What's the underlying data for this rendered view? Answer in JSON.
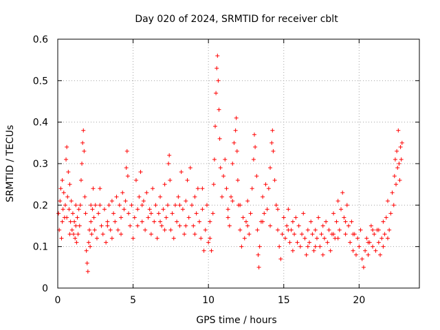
{
  "chart_data": {
    "type": "scatter",
    "title": "Day 020 of 2024, SRMTID for receiver cblt",
    "xlabel": "GPS time / hours",
    "ylabel": "SRMTID / TECUs",
    "xlim": [
      0,
      24
    ],
    "ylim": [
      0,
      0.6
    ],
    "xticks": [
      0,
      5,
      10,
      15,
      20
    ],
    "xtick_labels": [
      "0",
      "5",
      "10",
      "15",
      "20"
    ],
    "yticks": [
      0,
      0.1,
      0.2,
      0.3,
      0.4,
      0.5,
      0.6
    ],
    "ytick_labels": [
      "0",
      "0.1",
      "0.2",
      "0.3",
      "0.4",
      "0.5",
      "0.6"
    ],
    "grid": true,
    "marker": "plus",
    "marker_color": "#ff0000",
    "series": [
      {
        "name": "SRMTID",
        "points": [
          [
            0.05,
            0.18
          ],
          [
            0.1,
            0.14
          ],
          [
            0.15,
            0.21
          ],
          [
            0.2,
            0.24
          ],
          [
            0.25,
            0.12
          ],
          [
            0.3,
            0.26
          ],
          [
            0.35,
            0.19
          ],
          [
            0.4,
            0.23
          ],
          [
            0.45,
            0.17
          ],
          [
            0.5,
            0.2
          ],
          [
            0.55,
            0.31
          ],
          [
            0.6,
            0.34
          ],
          [
            0.65,
            0.22
          ],
          [
            0.7,
            0.28
          ],
          [
            0.75,
            0.19
          ],
          [
            0.8,
            0.25
          ],
          [
            0.85,
            0.16
          ],
          [
            0.9,
            0.21
          ],
          [
            0.95,
            0.14
          ],
          [
            1.0,
            0.18
          ],
          [
            1.05,
            0.13
          ],
          [
            1.1,
            0.16
          ],
          [
            1.15,
            0.12
          ],
          [
            1.2,
            0.15
          ],
          [
            1.25,
            0.11
          ],
          [
            1.3,
            0.17
          ],
          [
            1.35,
            0.13
          ],
          [
            1.4,
            0.19
          ],
          [
            1.45,
            0.15
          ],
          [
            1.5,
            0.2
          ],
          [
            1.55,
            0.26
          ],
          [
            1.6,
            0.3
          ],
          [
            1.65,
            0.35
          ],
          [
            1.7,
            0.38
          ],
          [
            1.75,
            0.33
          ],
          [
            1.8,
            0.22
          ],
          [
            1.85,
            0.18
          ],
          [
            1.9,
            0.09
          ],
          [
            1.95,
            0.06
          ],
          [
            2.0,
            0.04
          ],
          [
            2.05,
            0.11
          ],
          [
            2.1,
            0.14
          ],
          [
            2.15,
            0.1
          ],
          [
            2.2,
            0.16
          ],
          [
            2.25,
            0.13
          ],
          [
            2.3,
            0.19
          ],
          [
            2.35,
            0.24
          ],
          [
            2.4,
            0.17
          ],
          [
            2.45,
            0.14
          ],
          [
            2.5,
            0.2
          ],
          [
            2.6,
            0.12
          ],
          [
            2.7,
            0.18
          ],
          [
            2.8,
            0.24
          ],
          [
            2.9,
            0.15
          ],
          [
            3.0,
            0.13
          ],
          [
            3.1,
            0.19
          ],
          [
            3.2,
            0.11
          ],
          [
            3.3,
            0.16
          ],
          [
            3.4,
            0.2
          ],
          [
            3.5,
            0.14
          ],
          [
            3.6,
            0.12
          ],
          [
            3.7,
            0.18
          ],
          [
            3.8,
            0.16
          ],
          [
            3.9,
            0.22
          ],
          [
            4.0,
            0.14
          ],
          [
            4.1,
            0.2
          ],
          [
            4.2,
            0.17
          ],
          [
            4.3,
            0.23
          ],
          [
            4.4,
            0.19
          ],
          [
            4.5,
            0.21
          ],
          [
            4.55,
            0.29
          ],
          [
            4.6,
            0.33
          ],
          [
            4.65,
            0.27
          ],
          [
            4.7,
            0.18
          ],
          [
            4.8,
            0.15
          ],
          [
            4.9,
            0.2
          ],
          [
            5.0,
            0.12
          ],
          [
            5.1,
            0.17
          ],
          [
            5.2,
            0.26
          ],
          [
            5.3,
            0.19
          ],
          [
            5.4,
            0.22
          ],
          [
            5.5,
            0.28
          ],
          [
            5.6,
            0.16
          ],
          [
            5.7,
            0.21
          ],
          [
            5.8,
            0.14
          ],
          [
            5.9,
            0.23
          ],
          [
            6.0,
            0.17
          ],
          [
            6.1,
            0.19
          ],
          [
            6.2,
            0.13
          ],
          [
            6.3,
            0.24
          ],
          [
            6.4,
            0.16
          ],
          [
            6.5,
            0.2
          ],
          [
            6.6,
            0.12
          ],
          [
            6.7,
            0.18
          ],
          [
            6.8,
            0.22
          ],
          [
            6.9,
            0.15
          ],
          [
            7.0,
            0.19
          ],
          [
            7.1,
            0.25
          ],
          [
            7.2,
            0.17
          ],
          [
            7.3,
            0.2
          ],
          [
            7.35,
            0.3
          ],
          [
            7.4,
            0.32
          ],
          [
            7.45,
            0.26
          ],
          [
            7.5,
            0.14
          ],
          [
            7.6,
            0.18
          ],
          [
            7.7,
            0.12
          ],
          [
            7.8,
            0.2
          ],
          [
            7.9,
            0.16
          ],
          [
            8.0,
            0.22
          ],
          [
            8.1,
            0.15
          ],
          [
            8.2,
            0.28
          ],
          [
            8.3,
            0.19
          ],
          [
            8.4,
            0.13
          ],
          [
            8.5,
            0.21
          ],
          [
            8.6,
            0.26
          ],
          [
            8.7,
            0.17
          ],
          [
            8.8,
            0.29
          ],
          [
            8.9,
            0.2
          ],
          [
            9.0,
            0.15
          ],
          [
            9.1,
            0.22
          ],
          [
            9.2,
            0.18
          ],
          [
            9.3,
            0.24
          ],
          [
            9.4,
            0.16
          ],
          [
            9.5,
            0.12
          ],
          [
            9.6,
            0.19
          ],
          [
            9.7,
            0.09
          ],
          [
            9.8,
            0.14
          ],
          [
            9.9,
            0.2
          ],
          [
            10.0,
            0.11
          ],
          [
            10.1,
            0.16
          ],
          [
            10.2,
            0.09
          ],
          [
            10.3,
            0.18
          ],
          [
            10.35,
            0.25
          ],
          [
            10.4,
            0.31
          ],
          [
            10.45,
            0.39
          ],
          [
            10.5,
            0.47
          ],
          [
            10.55,
            0.53
          ],
          [
            10.6,
            0.56
          ],
          [
            10.65,
            0.5
          ],
          [
            10.7,
            0.43
          ],
          [
            10.75,
            0.36
          ],
          [
            10.8,
            0.29
          ],
          [
            10.9,
            0.22
          ],
          [
            11.0,
            0.27
          ],
          [
            11.1,
            0.31
          ],
          [
            11.2,
            0.24
          ],
          [
            11.3,
            0.19
          ],
          [
            11.4,
            0.15
          ],
          [
            11.5,
            0.22
          ],
          [
            11.6,
            0.3
          ],
          [
            11.7,
            0.35
          ],
          [
            11.8,
            0.38
          ],
          [
            11.85,
            0.41
          ],
          [
            11.9,
            0.33
          ],
          [
            11.95,
            0.26
          ],
          [
            12.0,
            0.2
          ],
          [
            12.1,
            0.14
          ],
          [
            12.2,
            0.1
          ],
          [
            12.3,
            0.17
          ],
          [
            12.4,
            0.12
          ],
          [
            12.5,
            0.16
          ],
          [
            12.6,
            0.21
          ],
          [
            12.7,
            0.13
          ],
          [
            12.8,
            0.18
          ],
          [
            12.9,
            0.24
          ],
          [
            13.0,
            0.31
          ],
          [
            13.05,
            0.37
          ],
          [
            13.1,
            0.34
          ],
          [
            13.2,
            0.27
          ],
          [
            13.25,
            0.14
          ],
          [
            13.3,
            0.08
          ],
          [
            13.35,
            0.05
          ],
          [
            13.4,
            0.1
          ],
          [
            13.5,
            0.16
          ],
          [
            13.6,
            0.22
          ],
          [
            13.7,
            0.18
          ],
          [
            13.8,
            0.25
          ],
          [
            13.9,
            0.19
          ],
          [
            14.0,
            0.24
          ],
          [
            14.1,
            0.29
          ],
          [
            14.2,
            0.35
          ],
          [
            14.25,
            0.38
          ],
          [
            14.3,
            0.33
          ],
          [
            14.4,
            0.26
          ],
          [
            14.5,
            0.2
          ],
          [
            14.6,
            0.14
          ],
          [
            14.7,
            0.1
          ],
          [
            14.8,
            0.07
          ],
          [
            14.9,
            0.13
          ],
          [
            15.0,
            0.17
          ],
          [
            15.1,
            0.12
          ],
          [
            15.2,
            0.15
          ],
          [
            15.3,
            0.19
          ],
          [
            15.4,
            0.11
          ],
          [
            15.5,
            0.14
          ],
          [
            15.6,
            0.09
          ],
          [
            15.7,
            0.13
          ],
          [
            15.8,
            0.17
          ],
          [
            15.9,
            0.11
          ],
          [
            16.0,
            0.15
          ],
          [
            16.1,
            0.1
          ],
          [
            16.2,
            0.13
          ],
          [
            16.3,
            0.18
          ],
          [
            16.4,
            0.12
          ],
          [
            16.5,
            0.08
          ],
          [
            16.6,
            0.14
          ],
          [
            16.7,
            0.11
          ],
          [
            16.8,
            0.16
          ],
          [
            16.9,
            0.13
          ],
          [
            17.0,
            0.09
          ],
          [
            17.1,
            0.14
          ],
          [
            17.2,
            0.12
          ],
          [
            17.3,
            0.17
          ],
          [
            17.4,
            0.1
          ],
          [
            17.5,
            0.13
          ],
          [
            17.6,
            0.08
          ],
          [
            17.7,
            0.12
          ],
          [
            17.8,
            0.16
          ],
          [
            17.9,
            0.11
          ],
          [
            18.0,
            0.14
          ],
          [
            18.1,
            0.09
          ],
          [
            18.2,
            0.13
          ],
          [
            18.3,
            0.18
          ],
          [
            18.4,
            0.12
          ],
          [
            18.5,
            0.16
          ],
          [
            18.6,
            0.21
          ],
          [
            18.7,
            0.14
          ],
          [
            18.8,
            0.19
          ],
          [
            18.9,
            0.23
          ],
          [
            19.0,
            0.17
          ],
          [
            19.1,
            0.13
          ],
          [
            19.2,
            0.2
          ],
          [
            19.3,
            0.15
          ],
          [
            19.4,
            0.11
          ],
          [
            19.5,
            0.16
          ],
          [
            19.6,
            0.09
          ],
          [
            19.7,
            0.13
          ],
          [
            19.8,
            0.08
          ],
          [
            19.9,
            0.12
          ],
          [
            20.0,
            0.1
          ],
          [
            20.1,
            0.14
          ],
          [
            20.2,
            0.07
          ],
          [
            20.3,
            0.05
          ],
          [
            20.4,
            0.09
          ],
          [
            20.5,
            0.12
          ],
          [
            20.6,
            0.08
          ],
          [
            20.7,
            0.11
          ],
          [
            20.8,
            0.15
          ],
          [
            20.9,
            0.1
          ],
          [
            21.0,
            0.13
          ],
          [
            21.1,
            0.09
          ],
          [
            21.2,
            0.14
          ],
          [
            21.3,
            0.11
          ],
          [
            21.4,
            0.08
          ],
          [
            21.5,
            0.12
          ],
          [
            21.6,
            0.16
          ],
          [
            21.7,
            0.13
          ],
          [
            21.8,
            0.17
          ],
          [
            21.9,
            0.21
          ],
          [
            22.0,
            0.14
          ],
          [
            22.1,
            0.18
          ],
          [
            22.2,
            0.23
          ],
          [
            22.3,
            0.2
          ],
          [
            22.35,
            0.27
          ],
          [
            22.4,
            0.31
          ],
          [
            22.45,
            0.25
          ],
          [
            22.5,
            0.33
          ],
          [
            22.55,
            0.29
          ],
          [
            22.6,
            0.38
          ],
          [
            22.65,
            0.3
          ],
          [
            22.7,
            0.26
          ],
          [
            22.75,
            0.34
          ],
          [
            22.8,
            0.31
          ],
          [
            22.85,
            0.35
          ],
          [
            0.3,
            0.16
          ],
          [
            0.8,
            0.13
          ],
          [
            1.2,
            0.2
          ],
          [
            2.2,
            0.2
          ],
          [
            3.3,
            0.15
          ],
          [
            4.2,
            0.13
          ],
          [
            5.3,
            0.15
          ],
          [
            6.2,
            0.18
          ],
          [
            7.1,
            0.14
          ],
          [
            8.1,
            0.2
          ],
          [
            9.1,
            0.13
          ],
          [
            10.1,
            0.12
          ],
          [
            11.3,
            0.17
          ],
          [
            12.6,
            0.15
          ],
          [
            13.6,
            0.16
          ],
          [
            14.6,
            0.19
          ],
          [
            15.6,
            0.16
          ],
          [
            16.6,
            0.1
          ],
          [
            17.6,
            0.15
          ],
          [
            18.6,
            0.12
          ],
          [
            19.6,
            0.13
          ],
          [
            20.6,
            0.11
          ],
          [
            21.6,
            0.1
          ],
          [
            0.6,
            0.17
          ],
          [
            2.8,
            0.2
          ],
          [
            5.6,
            0.2
          ],
          [
            8.5,
            0.15
          ],
          [
            12.1,
            0.2
          ],
          [
            14.1,
            0.15
          ],
          [
            17.1,
            0.1
          ],
          [
            19.1,
            0.16
          ],
          [
            20.9,
            0.14
          ],
          [
            21.9,
            0.12
          ],
          [
            3.6,
            0.21
          ],
          [
            6.8,
            0.16
          ],
          [
            9.6,
            0.24
          ],
          [
            11.6,
            0.21
          ],
          [
            15.3,
            0.14
          ],
          [
            18.3,
            0.13
          ],
          [
            21.3,
            0.14
          ]
        ]
      }
    ]
  }
}
